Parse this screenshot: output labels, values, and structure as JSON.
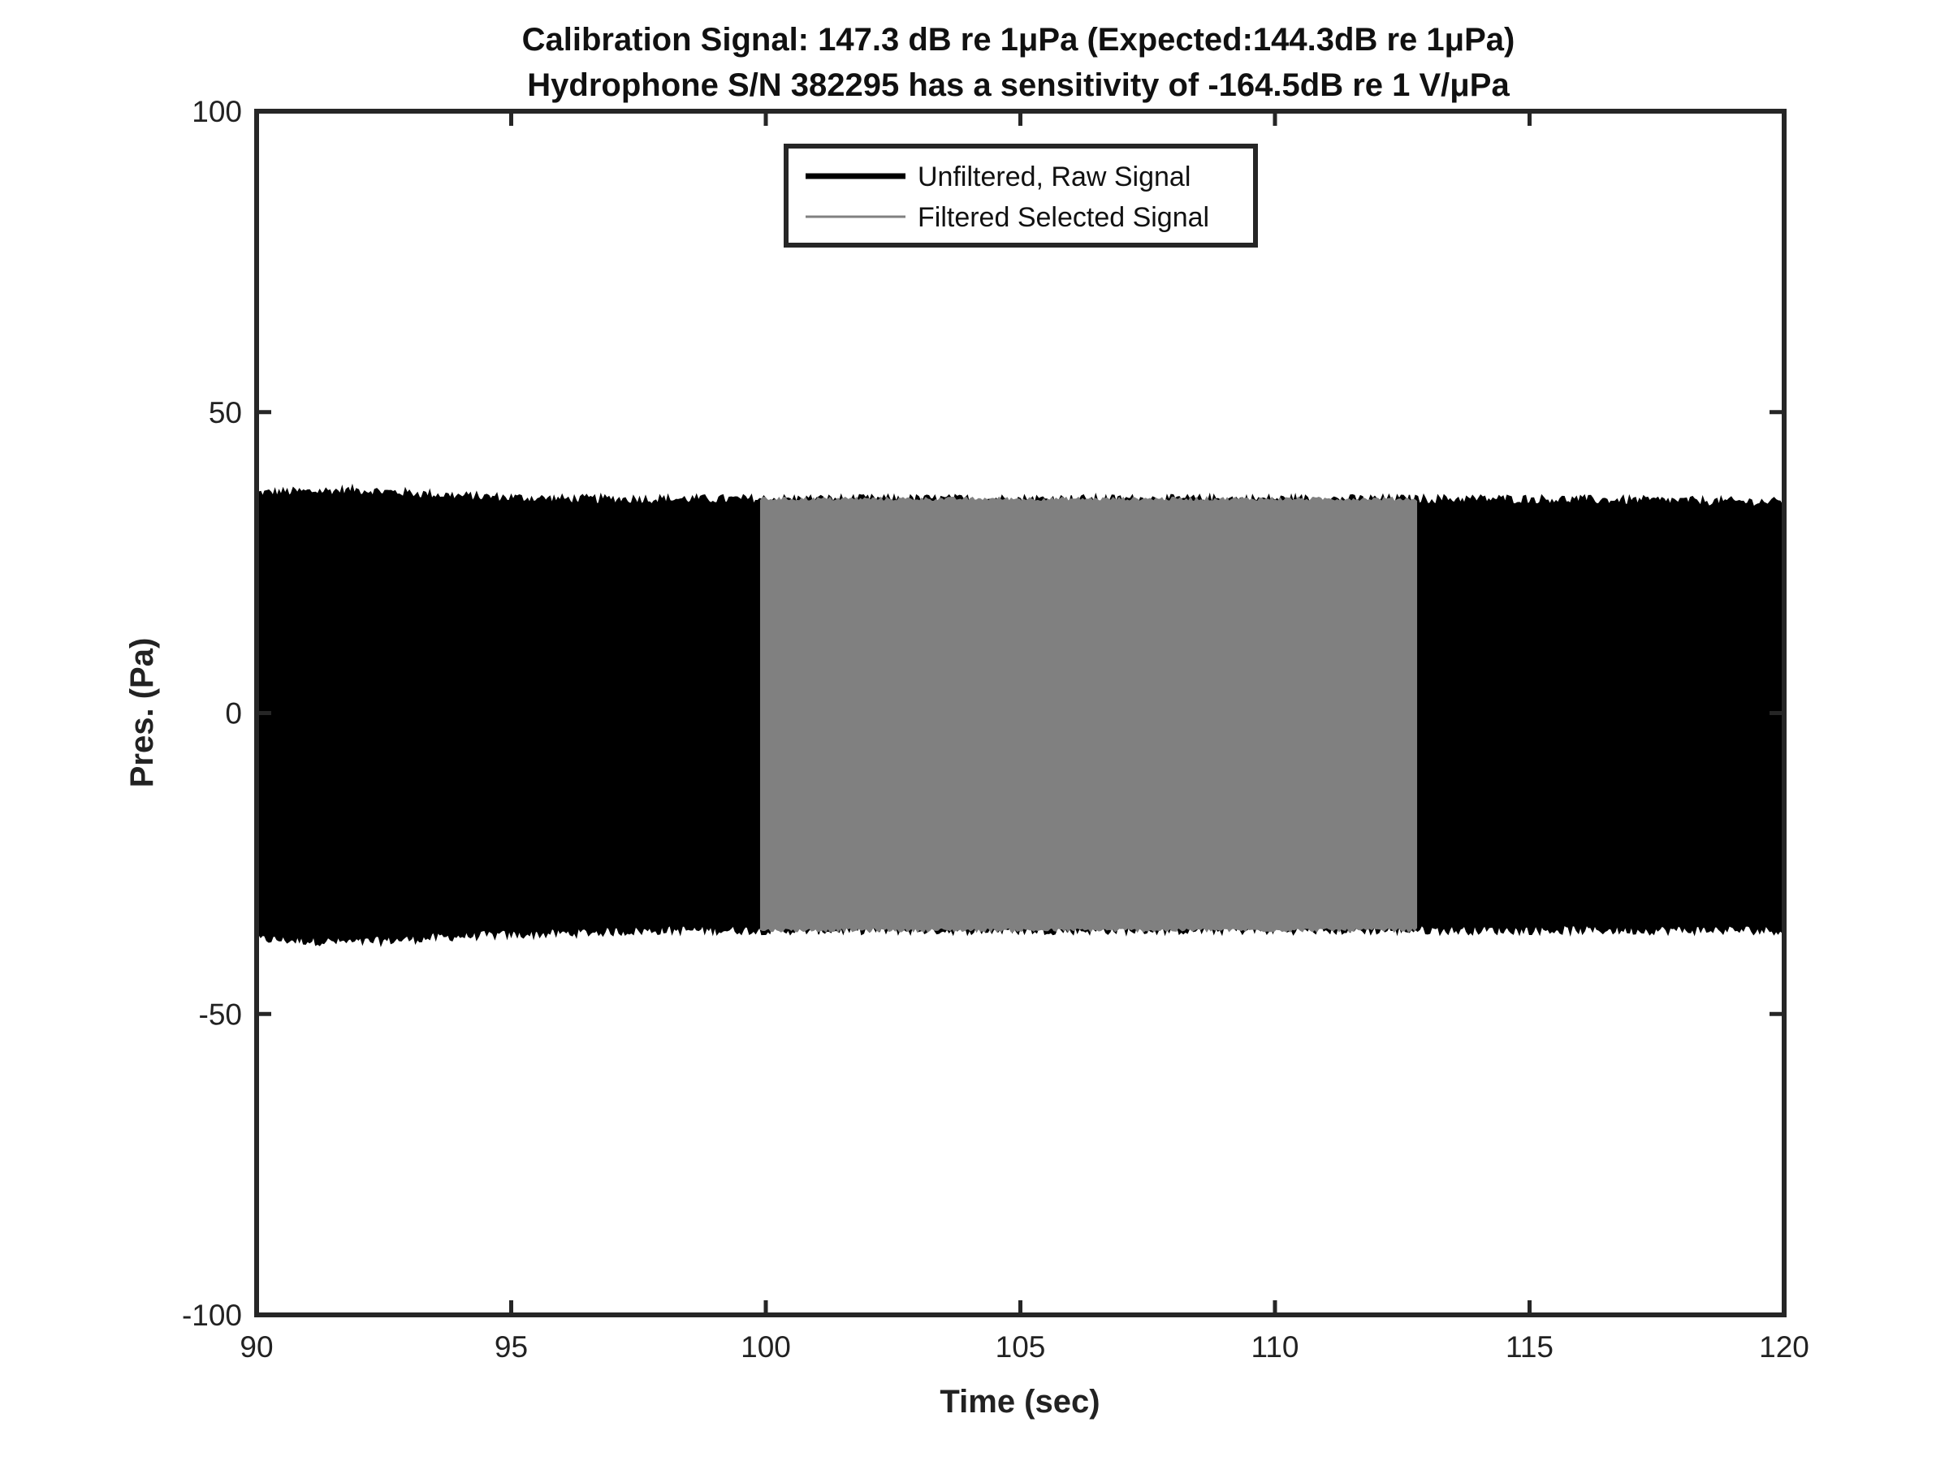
{
  "chart_data": {
    "type": "line",
    "title": [
      "Calibration Signal: 147.3 dB re 1μPa (Expected:144.3dB re 1μPa)",
      "Hydrophone S/N 382295 has a sensitivity of -164.5dB re 1 V/μPa"
    ],
    "xlabel": "Time (sec)",
    "ylabel": "Pres. (Pa)",
    "xlim": [
      90,
      120
    ],
    "ylim": [
      -100,
      100
    ],
    "xticks": [
      90,
      95,
      100,
      105,
      110,
      115,
      120
    ],
    "yticks": [
      -100,
      -50,
      0,
      50,
      100
    ],
    "grid": false,
    "legend_position": "top-center",
    "legend": [
      "Unfiltered, Raw Signal",
      "Filtered Selected Signal"
    ],
    "series": [
      {
        "name": "Unfiltered, Raw Signal",
        "color": "#000000",
        "x_range": [
          90,
          120
        ],
        "envelope": {
          "x": [
            90,
            92,
            94,
            96,
            98,
            100,
            105,
            110,
            113,
            115,
            120
          ],
          "upper": [
            36.5,
            37,
            36,
            35.5,
            35.5,
            35.5,
            35.5,
            35.5,
            35.5,
            35.5,
            35
          ],
          "lower": [
            -37.5,
            -38,
            -37,
            -36.5,
            -36,
            -36,
            -36,
            -36,
            -36,
            -36,
            -36
          ]
        }
      },
      {
        "name": "Filtered Selected Signal",
        "color": "#808080",
        "x_range": [
          99.9,
          112.8
        ],
        "envelope": {
          "x": [
            99.9,
            112.8
          ],
          "upper": [
            35.5,
            35.5
          ],
          "lower": [
            -36,
            -36
          ]
        }
      }
    ]
  }
}
